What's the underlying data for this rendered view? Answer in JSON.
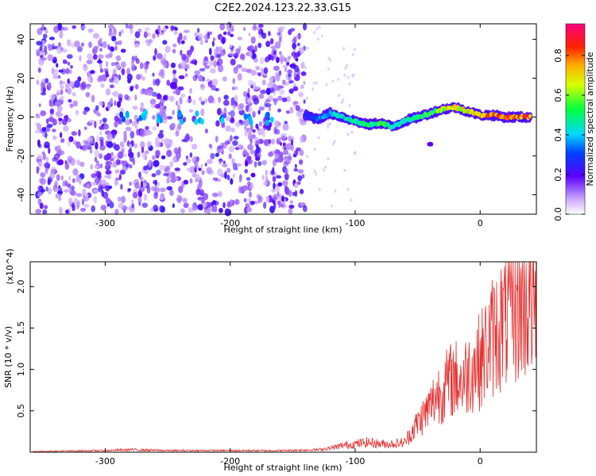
{
  "title": "C2E2.2024.123.22.33.G15",
  "chart_data": [
    {
      "type": "heatmap",
      "xlabel": "Height of straight line (km)",
      "ylabel": "Frequency (Hz)",
      "xlim": [
        -360,
        45
      ],
      "ylim": [
        -50,
        48
      ],
      "xticks": [
        -300,
        -200,
        -100,
        0
      ],
      "yticks": [
        -40,
        -20,
        0,
        20,
        40
      ],
      "colorbar": {
        "label": "Normalized spectral amplitude",
        "range": [
          0.0,
          0.96
        ],
        "ticks": [
          0.0,
          0.2,
          0.4,
          0.6,
          0.8
        ]
      },
      "noise_region_x": [
        -355,
        -140
      ],
      "signal_track": {
        "x": [
          -140,
          -130,
          -120,
          -110,
          -100,
          -90,
          -80,
          -70,
          -60,
          -50,
          -40,
          -30,
          -20,
          -10,
          0,
          10,
          20,
          30,
          40
        ],
        "y": [
          1,
          -1,
          2,
          0,
          -2,
          -4,
          -3,
          -5,
          -2,
          0,
          2,
          4,
          5,
          3,
          1,
          1,
          0,
          0,
          0
        ],
        "peak_amplitude": [
          0.3,
          0.35,
          0.45,
          0.5,
          0.55,
          0.55,
          0.6,
          0.5,
          0.5,
          0.55,
          0.6,
          0.7,
          0.8,
          0.8,
          0.85,
          0.9,
          0.9,
          0.92,
          0.92
        ]
      },
      "grid": false
    },
    {
      "type": "line",
      "xlabel": "Height of straight line (km)",
      "ylabel": "SNR (10 * v/v)",
      "y_multiplier": "(x10^4)",
      "xlim": [
        -360,
        45
      ],
      "ylim": [
        0,
        2.3
      ],
      "xticks": [
        -300,
        -200,
        -100,
        0
      ],
      "yticks": [
        0.5,
        1.0,
        1.5,
        2.0
      ],
      "color": "#e53030",
      "series": [
        {
          "x": [
            -355,
            -300,
            -280,
            -250,
            -200,
            -160,
            -130,
            -120,
            -110,
            -100,
            -90,
            -80,
            -70,
            -60,
            -55,
            -50,
            -45,
            -40,
            -35,
            -30,
            -25,
            -20,
            -15,
            -10,
            -5,
            0,
            5,
            10,
            15,
            20,
            25,
            30,
            35,
            40,
            45
          ],
          "y": [
            0.01,
            0.02,
            0.03,
            0.02,
            0.02,
            0.02,
            0.03,
            0.05,
            0.08,
            0.1,
            0.12,
            0.1,
            0.1,
            0.12,
            0.25,
            0.35,
            0.45,
            0.55,
            0.7,
            0.75,
            0.85,
            0.9,
            0.85,
            0.95,
            1.05,
            1.1,
            1.25,
            1.4,
            1.5,
            1.6,
            1.7,
            1.75,
            1.8,
            1.85,
            1.85
          ]
        }
      ],
      "grid": false
    }
  ]
}
